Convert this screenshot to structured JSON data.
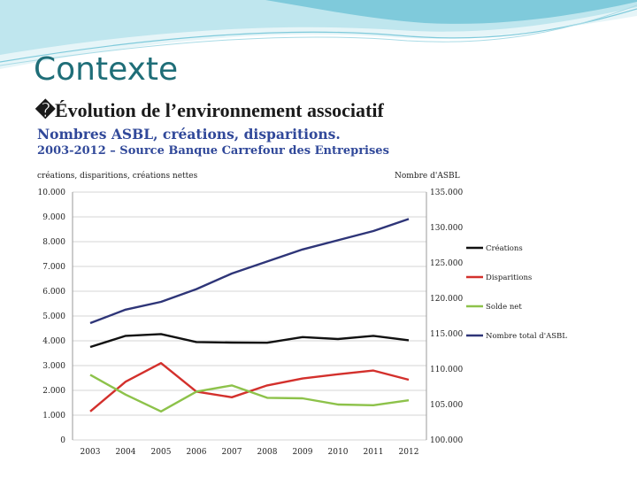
{
  "slide": {
    "title": "Contexte",
    "bullet_glyph": "�",
    "bullet_text": "Évolution de l’environnement associatif"
  },
  "colors": {
    "title": "#1f6e78",
    "header_light": "#bfe6ee",
    "header_mid": "#7fcadb",
    "chart_heading": "#31499a",
    "creations": "#111111",
    "disparitions": "#d3302c",
    "solde": "#8dc24a",
    "total": "#2e3578",
    "grid": "#c8c8c8"
  },
  "chart_data": {
    "type": "line",
    "title": "Nombres ASBL, créations, disparitions.",
    "subtitle": "2003-2012 – Source Banque Carrefour des Entreprises",
    "left_axis_label": "créations, disparitions, créations nettes",
    "right_axis_label": "Nombre d'ASBL",
    "x": [
      "2003",
      "2004",
      "2005",
      "2006",
      "2007",
      "2008",
      "2009",
      "2010",
      "2011",
      "2012"
    ],
    "left_ylim": [
      0,
      10000
    ],
    "left_ticks": [
      "0",
      "1.000",
      "2.000",
      "3.000",
      "4.000",
      "5.000",
      "6.000",
      "7.000",
      "8.000",
      "9.000",
      "10.000"
    ],
    "right_ylim": [
      100000,
      135000
    ],
    "right_ticks": [
      "100.000",
      "105.000",
      "110.000",
      "115.000",
      "120.000",
      "125.000",
      "130.000",
      "135.000"
    ],
    "grid": true,
    "legend_position": "right",
    "series": [
      {
        "name": "Créations",
        "axis": "left",
        "color": "#111111",
        "values": [
          3750,
          4200,
          4270,
          3950,
          3930,
          3920,
          4150,
          4070,
          4200,
          4020
        ]
      },
      {
        "name": "Disparitions",
        "axis": "left",
        "color": "#d3302c",
        "values": [
          1150,
          2350,
          3100,
          1950,
          1720,
          2200,
          2480,
          2650,
          2800,
          2430
        ]
      },
      {
        "name": "Solde net",
        "axis": "left",
        "color": "#8dc24a",
        "values": [
          2630,
          1830,
          1150,
          1950,
          2200,
          1700,
          1680,
          1430,
          1400,
          1600
        ]
      },
      {
        "name": "Nombre total d'ASBL",
        "axis": "right",
        "color": "#2e3578",
        "values": [
          116500,
          118400,
          119500,
          121300,
          123500,
          125200,
          126900,
          128200,
          129500,
          131200
        ]
      }
    ]
  }
}
